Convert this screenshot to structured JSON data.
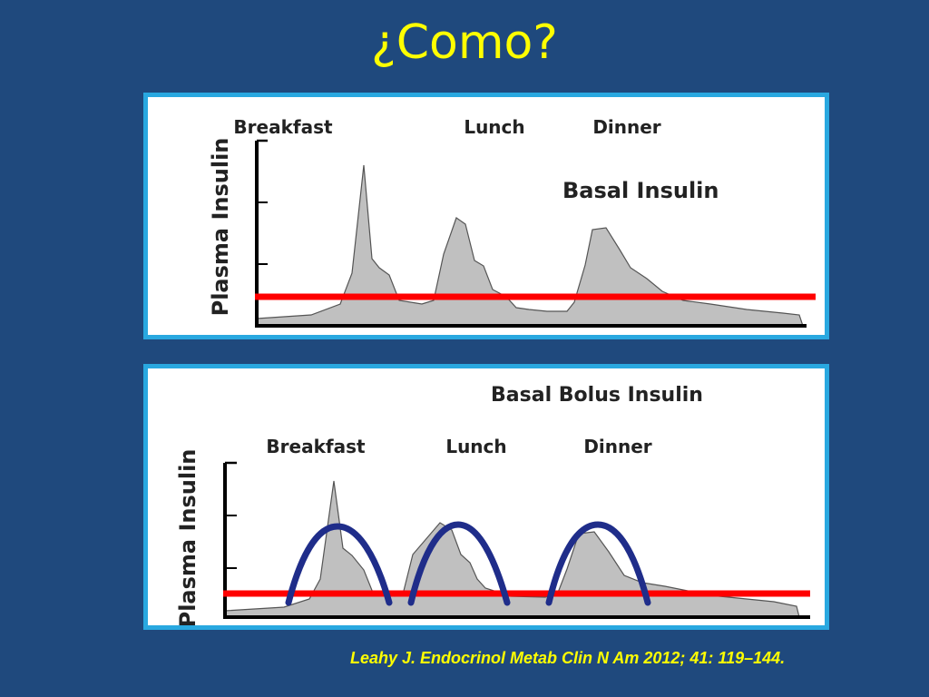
{
  "slide": {
    "title": "¿Como?",
    "citation": "Leahy J. Endocrinol Metab Clin N Am 2012; 41: 119–144."
  },
  "colors": {
    "background": "#1f497d",
    "title": "#ffff00",
    "panel_border": "#29a8e0",
    "curve_fill": "#c0c0c0",
    "basal_line": "#ff0000",
    "bolus_arc": "#1f2d8a"
  },
  "top_diagram": {
    "ylabel": "Plasma Insulin",
    "meal_labels": [
      "Breakfast",
      "Lunch",
      "Dinner"
    ],
    "annotation": "Basal Insulin"
  },
  "bottom_diagram": {
    "heading": "Basal Bolus Insulin",
    "ylabel": "Plasma Insulin",
    "meal_labels": [
      "Breakfast",
      "Lunch",
      "Dinner"
    ]
  }
}
